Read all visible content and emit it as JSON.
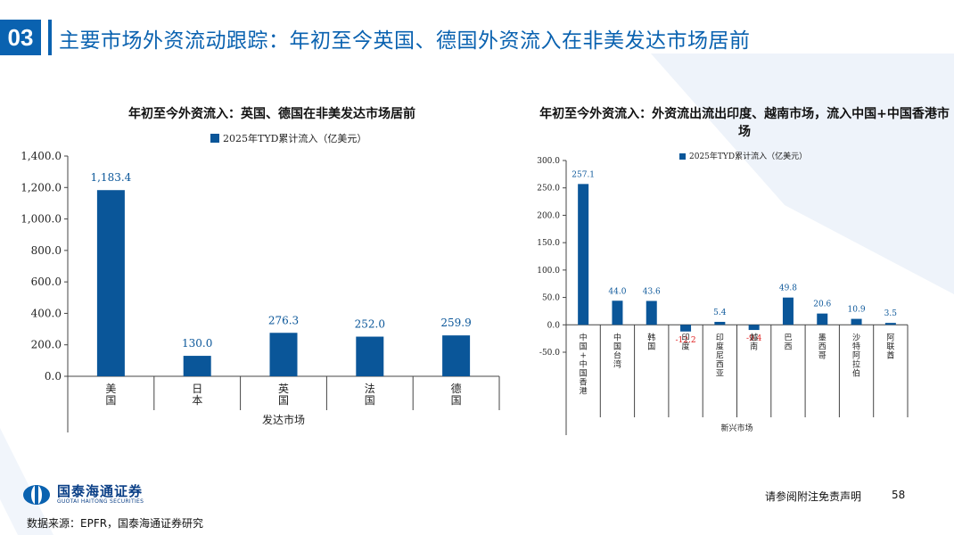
{
  "header": {
    "section_number": "03",
    "title": "主要市场外资流动跟踪：年初至今英国、德国外资流入在非美发达市场居前"
  },
  "chart_data": [
    {
      "type": "bar",
      "title": "年初至今外资流入：英国、德国在非美发达市场居前",
      "legend": "2025年TYD累计流入（亿美元）",
      "xlabel": "发达市场",
      "categories": [
        "美国",
        "日本",
        "英国",
        "法国",
        "德国"
      ],
      "values": [
        1183.4,
        130.0,
        276.3,
        252.0,
        259.9
      ],
      "value_labels": [
        "1,183.4",
        "130.0",
        "276.3",
        "252.0",
        "259.9"
      ],
      "ylim": [
        0,
        1400
      ],
      "yticks": [
        "0.0",
        "200.0",
        "400.0",
        "600.0",
        "800.0",
        "1,000.0",
        "1,200.0",
        "1,400.0"
      ],
      "bar_color": "#0a5699"
    },
    {
      "type": "bar",
      "title": "年初至今外资流入：外资流出流出印度、越南市场，流入中国+中国香港市场",
      "legend": "2025年TYD累计流入（亿美元）",
      "xlabel": "新兴市场",
      "categories": [
        "中国+中国香港",
        "中国台湾",
        "韩国",
        "印度",
        "印度尼西亚",
        "越南",
        "巴西",
        "墨西哥",
        "沙特阿拉伯",
        "阿联酋"
      ],
      "values": [
        257.1,
        44.0,
        43.6,
        -12.2,
        5.4,
        -9.4,
        49.8,
        20.6,
        10.9,
        3.5
      ],
      "value_labels": [
        "257.1",
        "44.0",
        "43.6",
        "-12.2",
        "5.4",
        "-9.4",
        "49.8",
        "20.6",
        "10.9",
        "3.5"
      ],
      "ylim": [
        -50,
        300
      ],
      "yticks": [
        "-50.0",
        "0.0",
        "50.0",
        "100.0",
        "150.0",
        "200.0",
        "250.0",
        "300.0"
      ],
      "bar_color": "#0a5699",
      "negative_label_color": "#e02020"
    }
  ],
  "footer": {
    "logo_cn": "国泰海通证券",
    "logo_en": "GUOTAI HAITONG SECURITIES",
    "source": "数据来源：EPFR，国泰海通证券研究",
    "disclaimer": "请参阅附注免责声明",
    "page_number": "58"
  }
}
